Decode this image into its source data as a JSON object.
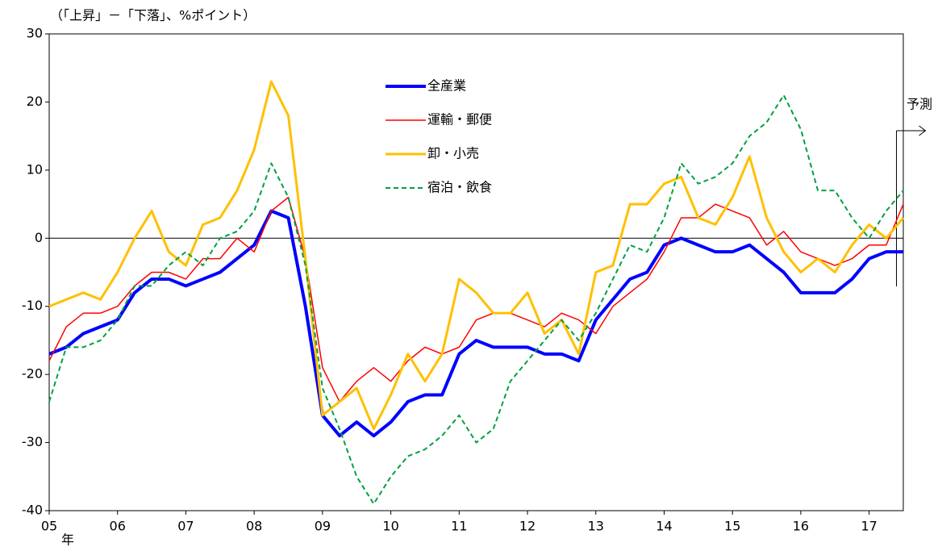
{
  "chart_data": {
    "type": "line",
    "unit_label": "（「上昇」－「下落」、%ポイント）",
    "x_axis_label": "年",
    "forecast_label": "予測",
    "forecast_start": 2017.4,
    "x": [
      2005,
      2005.25,
      2005.5,
      2005.75,
      2006,
      2006.25,
      2006.5,
      2006.75,
      2007,
      2007.25,
      2007.5,
      2007.75,
      2008,
      2008.25,
      2008.5,
      2008.75,
      2009,
      2009.25,
      2009.5,
      2009.75,
      2010,
      2010.25,
      2010.5,
      2010.75,
      2011,
      2011.25,
      2011.5,
      2011.75,
      2012,
      2012.25,
      2012.5,
      2012.75,
      2013,
      2013.25,
      2013.5,
      2013.75,
      2014,
      2014.25,
      2014.5,
      2014.75,
      2015,
      2015.25,
      2015.5,
      2015.75,
      2016,
      2016.25,
      2016.5,
      2016.75,
      2017,
      2017.25,
      2017.5
    ],
    "series": [
      {
        "name": "全産業",
        "color": "#0000ff",
        "width": 4,
        "dash": false,
        "values": [
          -17,
          -16,
          -14,
          -13,
          -12,
          -8,
          -6,
          -6,
          -7,
          -6,
          -5,
          -3,
          -1,
          4,
          3,
          -10,
          -26,
          -29,
          -27,
          -29,
          -27,
          -24,
          -23,
          -23,
          -17,
          -15,
          -16,
          -16,
          -16,
          -17,
          -17,
          -18,
          -12,
          -9,
          -6,
          -5,
          -1,
          0,
          -1,
          -2,
          -2,
          -1,
          -3,
          -5,
          -8,
          -8,
          -8,
          -6,
          -3,
          -2,
          -2
        ]
      },
      {
        "name": "運輸・郵便",
        "color": "#ff0000",
        "width": 1.5,
        "dash": false,
        "values": [
          -18,
          -13,
          -11,
          -11,
          -10,
          -7,
          -5,
          -5,
          -6,
          -3,
          -3,
          0,
          -2,
          4,
          6,
          -3,
          -19,
          -24,
          -21,
          -19,
          -21,
          -18,
          -16,
          -17,
          -16,
          -12,
          -11,
          -11,
          -12,
          -13,
          -11,
          -12,
          -14,
          -10,
          -8,
          -6,
          -2,
          3,
          3,
          5,
          4,
          3,
          -1,
          1,
          -2,
          -3,
          -4,
          -3,
          -1,
          -1,
          5
        ]
      },
      {
        "name": "卸・小売",
        "color": "#ffc000",
        "width": 3,
        "dash": false,
        "values": [
          -10,
          -9,
          -8,
          -9,
          -5,
          0,
          4,
          -2,
          -4,
          2,
          3,
          7,
          13,
          23,
          18,
          -3,
          -26,
          -24,
          -22,
          -28,
          -23,
          -17,
          -21,
          -17,
          -6,
          -8,
          -11,
          -11,
          -8,
          -14,
          -12,
          -17,
          -5,
          -4,
          5,
          5,
          8,
          9,
          3,
          2,
          6,
          12,
          3,
          -2,
          -5,
          -3,
          -5,
          -1,
          2,
          0,
          3
        ]
      },
      {
        "name": "宿泊・飲食",
        "color": "#00a040",
        "width": 2,
        "dash": true,
        "values": [
          -24,
          -16,
          -16,
          -15,
          -12,
          -7,
          -7,
          -4,
          -2,
          -4,
          0,
          1,
          4,
          11,
          6,
          -4,
          -22,
          -28,
          -35,
          -39,
          -35,
          -32,
          -31,
          -29,
          -26,
          -30,
          -28,
          -21,
          -18,
          -15,
          -12,
          -15,
          -11,
          -6,
          -1,
          -2,
          3,
          11,
          8,
          9,
          11,
          15,
          17,
          21,
          16,
          7,
          7,
          3,
          0,
          4,
          7
        ]
      }
    ],
    "xlim": [
      2005,
      2017.5
    ],
    "xticks": [
      {
        "value": 2005,
        "label": "05"
      },
      {
        "value": 2006,
        "label": "06"
      },
      {
        "value": 2007,
        "label": "07"
      },
      {
        "value": 2008,
        "label": "08"
      },
      {
        "value": 2009,
        "label": "09"
      },
      {
        "value": 2010,
        "label": "10"
      },
      {
        "value": 2011,
        "label": "11"
      },
      {
        "value": 2012,
        "label": "12"
      },
      {
        "value": 2013,
        "label": "13"
      },
      {
        "value": 2014,
        "label": "14"
      },
      {
        "value": 2015,
        "label": "15"
      },
      {
        "value": 2016,
        "label": "16"
      },
      {
        "value": 2017,
        "label": "17"
      }
    ],
    "ylim": [
      -40,
      30
    ],
    "yticks": [
      -40,
      -30,
      -20,
      -10,
      0,
      10,
      20,
      30
    ],
    "grid": false
  }
}
